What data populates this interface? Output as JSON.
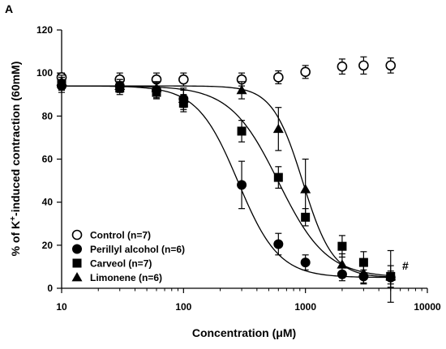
{
  "chart_data": {
    "type": "scatter",
    "panel_label": "A",
    "xlabel": "Concentration (μM)",
    "ylabel": "% of K+-induced contraction (60mM)",
    "ylabel_parts": {
      "pre": "% of K",
      "sup": "+",
      "post": "-induced contraction (60mM)"
    },
    "xscale": "log",
    "xlim": [
      10,
      10000
    ],
    "ylim": [
      0,
      120
    ],
    "x_ticks": [
      10,
      100,
      1000,
      10000
    ],
    "x_tick_labels": [
      "10",
      "100",
      "1000",
      "10000"
    ],
    "y_ticks": [
      0,
      20,
      40,
      60,
      80,
      100,
      120
    ],
    "y_tick_labels": [
      "0",
      "20",
      "40",
      "60",
      "80",
      "100",
      "120"
    ],
    "grid": false,
    "legend_position": "bottom-left",
    "annotation": "#",
    "series": [
      {
        "name": "Control (n=7)",
        "marker": "circle-open",
        "fit": "none",
        "x": [
          10,
          30,
          60,
          100,
          300,
          600,
          1000,
          2000,
          3000,
          5000
        ],
        "y": [
          98,
          97,
          97,
          97,
          97,
          98,
          100.5,
          103,
          103.5,
          103.5
        ],
        "err": [
          2,
          3,
          3,
          3,
          3,
          3,
          3,
          3.5,
          4,
          3.5
        ]
      },
      {
        "name": "Perillyl alcohol (n=6)",
        "marker": "circle-filled",
        "fit": {
          "top": 94,
          "bottom": 5,
          "ec50": 280,
          "hill": 2.6
        },
        "x": [
          10,
          30,
          60,
          100,
          300,
          600,
          1000,
          2000,
          3000,
          5000
        ],
        "y": [
          94,
          94,
          92,
          88,
          48,
          20.5,
          12,
          6.5,
          5.5,
          5
        ],
        "err": [
          3,
          3,
          3.5,
          5,
          11,
          5,
          3.5,
          3,
          3,
          3
        ]
      },
      {
        "name": "Carveol (n=7)",
        "marker": "square-filled",
        "fit": {
          "top": 94,
          "bottom": 5,
          "ec50": 600,
          "hill": 2.2
        },
        "x": [
          10,
          30,
          60,
          100,
          300,
          600,
          1000,
          2000,
          3000,
          5000
        ],
        "y": [
          95,
          93,
          91,
          86,
          73,
          51.5,
          33,
          19.5,
          12,
          5.5
        ],
        "err": [
          3,
          3,
          3,
          4,
          5,
          5,
          4,
          5,
          5,
          5
        ]
      },
      {
        "name": "Limonene (n=6)",
        "marker": "triangle-filled",
        "fit": {
          "top": 94,
          "bottom": 5,
          "ec50": 950,
          "hill": 3.5
        },
        "x": [
          10,
          30,
          60,
          100,
          300,
          600,
          1000,
          2000,
          3000,
          5000
        ],
        "y": [
          96,
          94,
          93,
          88,
          92,
          74,
          46,
          11,
          7,
          5.5
        ],
        "err": [
          3,
          3,
          3,
          4,
          4,
          10,
          14,
          5,
          5,
          12
        ]
      }
    ]
  }
}
